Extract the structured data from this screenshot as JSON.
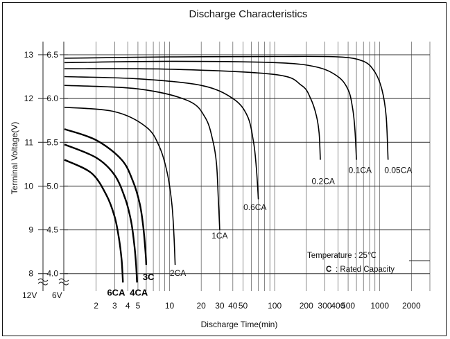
{
  "chart_data": {
    "type": "line",
    "title": "Discharge Characteristics",
    "xlabel": "Discharge Time(min)",
    "ylabel": "Terminal Voltage(V)",
    "x_scale": "log",
    "xlim": [
      1,
      3000
    ],
    "ylim_12v": [
      7.6,
      13.3
    ],
    "x_ticks": [
      {
        "value": 2,
        "label": "2"
      },
      {
        "value": 3,
        "label": "3"
      },
      {
        "value": 4,
        "label": "4"
      },
      {
        "value": 5,
        "label": "5"
      },
      {
        "value": 10,
        "label": "10"
      },
      {
        "value": 20,
        "label": "20"
      },
      {
        "value": 30,
        "label": "30"
      },
      {
        "value": 40,
        "label": "40"
      },
      {
        "value": 50,
        "label": "50"
      },
      {
        "value": 100,
        "label": "100"
      },
      {
        "value": 200,
        "label": "200"
      },
      {
        "value": 300,
        "label": "300"
      },
      {
        "value": 400,
        "label": "400"
      },
      {
        "value": 500,
        "label": "500"
      },
      {
        "value": 1000,
        "label": "1000"
      },
      {
        "value": 2000,
        "label": "2000"
      }
    ],
    "x_grid": [
      2,
      3,
      4,
      5,
      6,
      7,
      8,
      9,
      10,
      20,
      30,
      40,
      50,
      60,
      70,
      80,
      90,
      100,
      200,
      300,
      400,
      500,
      600,
      700,
      800,
      900,
      1000,
      2000,
      3000
    ],
    "y_ticks_12v": [
      {
        "value": 8,
        "label": "8"
      },
      {
        "value": 9,
        "label": "9"
      },
      {
        "value": 10,
        "label": "10"
      },
      {
        "value": 11,
        "label": "11"
      },
      {
        "value": 12,
        "label": "12"
      },
      {
        "value": 13,
        "label": "13"
      }
    ],
    "y_ticks_6v": [
      {
        "value": 8,
        "label": "4.0"
      },
      {
        "value": 9,
        "label": "4.5"
      },
      {
        "value": 10,
        "label": "5.0"
      },
      {
        "value": 11,
        "label": "5.5"
      },
      {
        "value": 12,
        "label": "6.0"
      },
      {
        "value": 13,
        "label": "6.5"
      }
    ],
    "axis_base_labels": {
      "v12": "12V",
      "v6": "6V"
    },
    "grid": true,
    "annotations": {
      "temperature": "Temperature : 25℃",
      "capacity_key": "C",
      "capacity_text": ": Rated Capacity"
    },
    "series": [
      {
        "name": "0.05CA",
        "label": "0.05CA",
        "label_at": [
          1500,
          10.3
        ],
        "x": [
          1,
          10,
          100,
          400,
          700,
          900,
          1050,
          1150,
          1200
        ],
        "y": [
          12.92,
          12.95,
          12.96,
          12.95,
          12.85,
          12.6,
          12.2,
          11.6,
          10.6
        ]
      },
      {
        "name": "0.1CA",
        "label": "0.1CA",
        "label_at": [
          650,
          10.3
        ],
        "x": [
          1,
          10,
          100,
          250,
          400,
          500,
          550,
          580,
          600
        ],
        "y": [
          12.82,
          12.85,
          12.82,
          12.72,
          12.5,
          12.2,
          11.8,
          11.3,
          10.6
        ]
      },
      {
        "name": "0.2CA",
        "label": "0.2CA",
        "label_at": [
          290,
          10.05
        ],
        "x": [
          1,
          10,
          100,
          180,
          220,
          250,
          265,
          272
        ],
        "y": [
          12.68,
          12.67,
          12.55,
          12.3,
          12.0,
          11.6,
          11.2,
          10.6
        ]
      },
      {
        "name": "0.6CA",
        "label": "0.6CA",
        "label_at": [
          65,
          9.45
        ],
        "x": [
          1,
          5,
          20,
          40,
          55,
          63,
          67,
          70
        ],
        "y": [
          12.5,
          12.45,
          12.3,
          12.0,
          11.6,
          11.0,
          10.4,
          9.7
        ]
      },
      {
        "name": "1CA",
        "label": "1CA",
        "label_at": [
          30,
          8.8
        ],
        "x": [
          1,
          5,
          15,
          22,
          26,
          28,
          29,
          30
        ],
        "y": [
          12.3,
          12.22,
          11.95,
          11.55,
          11.0,
          10.5,
          9.8,
          9.0
        ]
      },
      {
        "name": "2CA",
        "label": "2CA",
        "label_at": [
          12,
          7.95
        ],
        "x": [
          1,
          3,
          6,
          8,
          9.5,
          10.5,
          11,
          11.3
        ],
        "y": [
          11.8,
          11.7,
          11.35,
          10.9,
          10.3,
          9.6,
          8.9,
          8.2
        ]
      },
      {
        "name": "3C",
        "label": "3C",
        "label_at": [
          6.3,
          7.85
        ],
        "x": [
          1,
          2,
          3.5,
          4.5,
          5.2,
          5.6,
          5.9,
          6.0
        ],
        "y": [
          11.3,
          11.05,
          10.6,
          10.1,
          9.6,
          9.1,
          8.5,
          8.2
        ]
      },
      {
        "name": "4CA",
        "label": "4CA",
        "label_at": [
          5.1,
          7.5
        ],
        "x": [
          1,
          2,
          3,
          3.8,
          4.3,
          4.6,
          4.8,
          4.9
        ],
        "y": [
          10.95,
          10.65,
          10.25,
          9.7,
          9.2,
          8.7,
          8.2,
          7.8
        ]
      },
      {
        "name": "6CA",
        "label": "6CA",
        "label_at": [
          3.1,
          7.5
        ],
        "x": [
          1,
          1.8,
          2.5,
          3.0,
          3.3,
          3.5,
          3.6
        ],
        "y": [
          10.6,
          10.3,
          9.8,
          9.3,
          8.8,
          8.3,
          7.8
        ]
      }
    ]
  }
}
